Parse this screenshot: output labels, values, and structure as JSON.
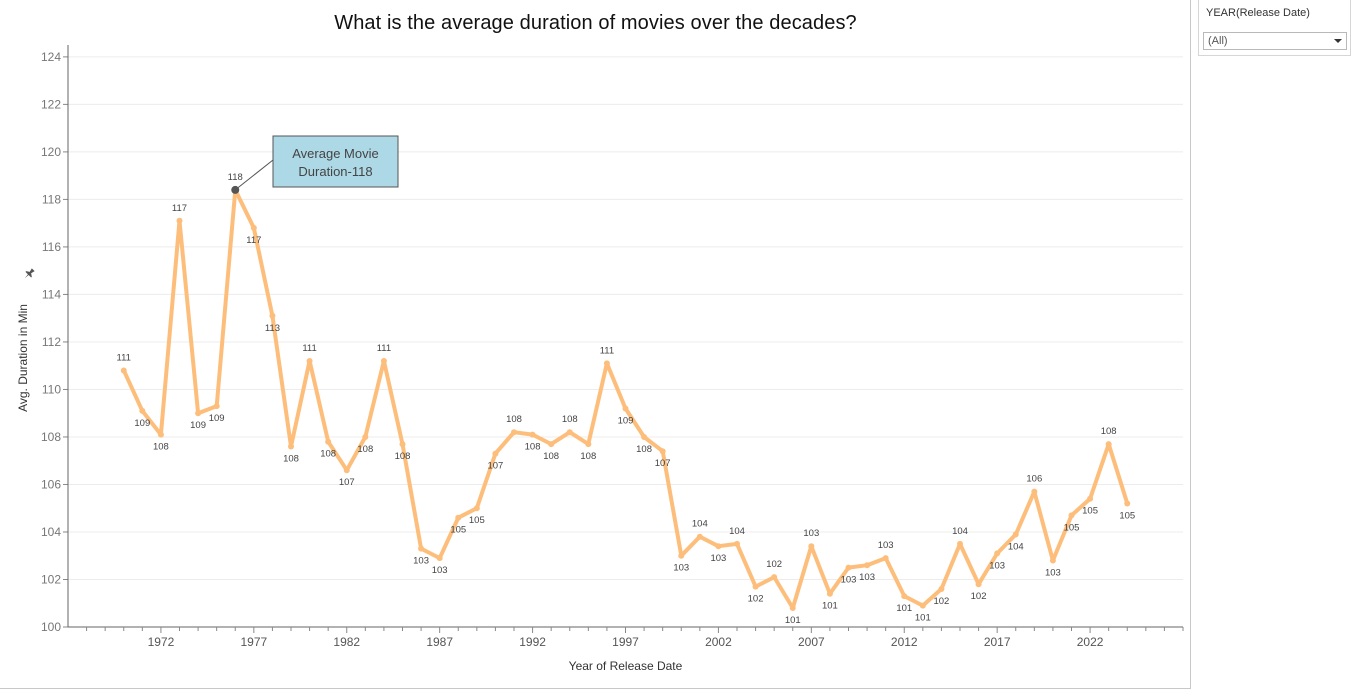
{
  "chart_data": {
    "type": "line",
    "title": "What is the average duration of movies over the decades?",
    "xlabel": "Year of Release Date",
    "ylabel": "Avg. Duration in Min",
    "xlim": [
      1967,
      2027
    ],
    "ylim": [
      100,
      124.5
    ],
    "x_ticks": [
      1972,
      1977,
      1982,
      1987,
      1992,
      1997,
      2002,
      2007,
      2012,
      2017,
      2022
    ],
    "y_ticks": [
      100,
      102,
      104,
      106,
      108,
      110,
      112,
      114,
      116,
      118,
      120,
      122,
      124
    ],
    "grid": true,
    "line_color": "#FDBE7B",
    "series": [
      {
        "x": [
          1970,
          1971,
          1972,
          1973,
          1974,
          1975,
          1976,
          1977,
          1978,
          1979,
          1980,
          1981,
          1982,
          1983,
          1984,
          1985,
          1986,
          1987,
          1988,
          1989,
          1990,
          1991,
          1992,
          1993,
          1994,
          1995,
          1996,
          1997,
          1998,
          1999,
          2000,
          2001,
          2002,
          2003,
          2004,
          2005,
          2006,
          2007,
          2008,
          2009,
          2010,
          2011,
          2012,
          2013,
          2014,
          2015,
          2016,
          2017,
          2018,
          2019,
          2020,
          2021,
          2022,
          2023,
          2024
        ],
        "values": [
          110.8,
          109.1,
          108.1,
          117.1,
          109.0,
          109.3,
          118.4,
          116.8,
          113.1,
          107.6,
          111.2,
          107.8,
          106.6,
          108.0,
          111.2,
          107.7,
          103.3,
          102.9,
          104.6,
          105.0,
          107.3,
          108.2,
          108.1,
          107.7,
          108.2,
          107.7,
          111.1,
          109.2,
          108.0,
          107.4,
          103.0,
          103.8,
          103.4,
          103.5,
          101.7,
          102.1,
          100.8,
          103.4,
          101.4,
          102.5,
          102.6,
          102.9,
          101.3,
          100.9,
          101.6,
          103.5,
          101.8,
          103.1,
          103.9,
          105.7,
          102.8,
          104.7,
          105.4,
          107.7,
          105.2
        ],
        "labels": [
          "111",
          "109",
          "108",
          "117",
          "109",
          "109",
          "118",
          "117",
          "113",
          "108",
          "111",
          "108",
          "107",
          "108",
          "111",
          "108",
          "103",
          "103",
          "105",
          "105",
          "107",
          "108",
          "108",
          "108",
          "108",
          "108",
          "111",
          "109",
          "108",
          "107",
          "103",
          "104",
          "103",
          "104",
          "102",
          "102",
          "101",
          "103",
          "101",
          "103",
          "103",
          "103",
          "101",
          "101",
          "102",
          "104",
          "102",
          "103",
          "104",
          "106",
          "103",
          "105",
          "105",
          "108",
          "105"
        ]
      }
    ],
    "annotation": {
      "text_line1": "Average Movie",
      "text_line2": "Duration-118",
      "x": 1976,
      "y": 118.4,
      "box_color": "#ADD8E6"
    }
  },
  "filter": {
    "title": "YEAR(Release Date)",
    "value": "(All)"
  },
  "icons": {
    "pin": "pin-icon",
    "dropdown": "chevron-down-icon"
  }
}
